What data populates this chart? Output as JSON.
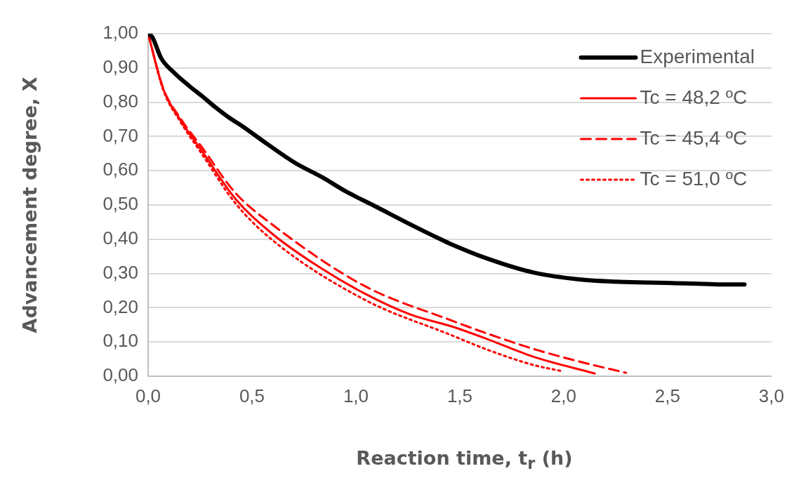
{
  "chart_data": {
    "type": "line",
    "xlabel": "Reaction time, t$_{r}$ (h)",
    "ylabel": "Advancement degree, X",
    "xlim": [
      0,
      3
    ],
    "xticks": [
      {
        "value": 0,
        "label": "0,0"
      },
      {
        "value": 0.5,
        "label": "0,5"
      },
      {
        "value": 1,
        "label": "1,0"
      },
      {
        "value": 1.5,
        "label": "1,5"
      },
      {
        "value": 2,
        "label": "2,0"
      },
      {
        "value": 2.5,
        "label": "2,5"
      },
      {
        "value": 3,
        "label": "3,0"
      }
    ],
    "ylim": [
      0,
      1
    ],
    "yticks": [
      {
        "value": 0,
        "label": "0,00"
      },
      {
        "value": 0.1,
        "label": "0,10"
      },
      {
        "value": 0.2,
        "label": "0,20"
      },
      {
        "value": 0.3,
        "label": "0,30"
      },
      {
        "value": 0.4,
        "label": "0,40"
      },
      {
        "value": 0.5,
        "label": "0,50"
      },
      {
        "value": 0.6,
        "label": "0,60"
      },
      {
        "value": 0.7,
        "label": "0,70"
      },
      {
        "value": 0.8,
        "label": "0,80"
      },
      {
        "value": 0.9,
        "label": "0,90"
      },
      {
        "value": 1,
        "label": "1,00"
      }
    ],
    "grid": "y",
    "legend": "top right",
    "marker": "none",
    "series": [
      {
        "name": "Experimental",
        "color": "#000000",
        "line_style": "solid",
        "x": [
          0,
          0.02,
          0.063,
          0.12,
          0.197,
          0.263,
          0.32,
          0.387,
          0.453,
          0.573,
          0.707,
          0.84,
          0.953,
          1.087,
          1.263,
          1.407,
          1.453,
          1.63,
          1.853,
          2.073,
          2.297,
          2.52,
          2.807,
          2.87
        ],
        "values": [
          1.0,
          0.99,
          0.928,
          0.889,
          0.848,
          0.816,
          0.787,
          0.756,
          0.73,
          0.678,
          0.623,
          0.58,
          0.539,
          0.498,
          0.443,
          0.4,
          0.387,
          0.344,
          0.303,
          0.283,
          0.275,
          0.272,
          0.268,
          0.268
        ]
      },
      {
        "name": "Tc = 48,2 ºC",
        "color": "#ff0000",
        "line_style": "solid",
        "x": [
          0,
          0.073,
          0.153,
          0.263,
          0.42,
          0.597,
          0.82,
          1.04,
          1.263,
          1.463,
          1.63,
          1.853,
          2.15
        ],
        "values": [
          1.0,
          0.838,
          0.75,
          0.654,
          0.518,
          0.416,
          0.32,
          0.242,
          0.18,
          0.145,
          0.109,
          0.057,
          0.008
        ]
      },
      {
        "name": "Tc = 45,4 ºC",
        "color": "#ff0000",
        "line_style": "dashed",
        "x": [
          0,
          0.073,
          0.153,
          0.263,
          0.42,
          0.597,
          1.04,
          1.463,
          1.63,
          1.853,
          2.073,
          2.3
        ],
        "values": [
          1.0,
          0.84,
          0.755,
          0.665,
          0.535,
          0.443,
          0.264,
          0.162,
          0.125,
          0.08,
          0.043,
          0.01
        ]
      },
      {
        "name": "Tc = 51,0 ºC",
        "color": "#ff0000",
        "line_style": "dotted",
        "x": [
          0,
          0.073,
          0.153,
          0.263,
          0.42,
          0.597,
          1.04,
          1.463,
          1.63,
          1.853,
          1.99
        ],
        "values": [
          1.0,
          0.835,
          0.745,
          0.645,
          0.505,
          0.398,
          0.224,
          0.119,
          0.078,
          0.033,
          0.015
        ]
      }
    ]
  }
}
